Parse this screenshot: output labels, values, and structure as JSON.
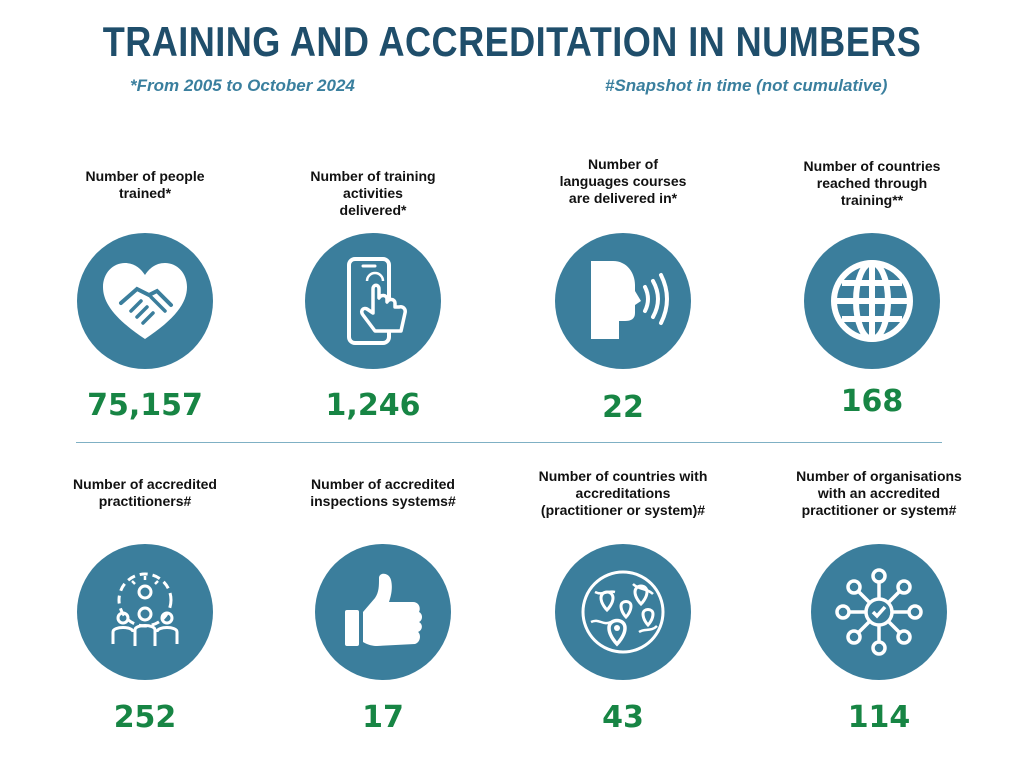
{
  "header": {
    "title": "TRAINING AND ACCREDITATION IN NUMBERS",
    "subtitle_left": "*From 2005 to October 2024",
    "subtitle_right": "#Snapshot in time (not cumulative)"
  },
  "colors": {
    "title": "#1f4e6b",
    "subtitle": "#3a7f9e",
    "circle": "#3b7e9c",
    "value": "#178544"
  },
  "training": [
    {
      "label": "Number of people\ntrained*",
      "value": "75,157",
      "icon": "heart-handshake-icon"
    },
    {
      "label": "Number of training\nactivities\ndelivered*",
      "value": "1,246",
      "icon": "phone-tap-icon"
    },
    {
      "label": "Number of\nlanguages courses\nare delivered in*",
      "value": "22",
      "icon": "speaking-head-icon"
    },
    {
      "label": "Number of countries\nreached through\ntraining**",
      "value": "168",
      "icon": "globe-icon"
    }
  ],
  "accreditation": [
    {
      "label": "Number of accredited\npractitioners#",
      "value": "252",
      "icon": "team-gear-icon"
    },
    {
      "label": "Number of accredited\ninspections systems#",
      "value": "17",
      "icon": "thumbs-up-icon"
    },
    {
      "label": "Number of countries with\naccreditations\n(practitioner or system)#",
      "value": "43",
      "icon": "map-pins-globe-icon"
    },
    {
      "label": "Number of organisations\nwith an accredited\npractitioner or system#",
      "value": "114",
      "icon": "network-check-icon"
    }
  ]
}
